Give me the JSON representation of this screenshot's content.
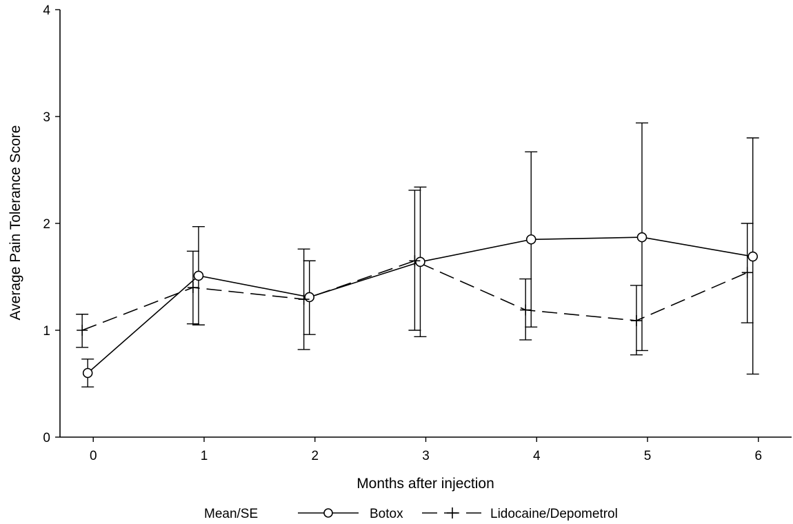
{
  "chart_data": {
    "type": "line",
    "xlabel": "Months after injection",
    "ylabel": "Average Pain Tolerance Score",
    "xlim": [
      -0.3,
      6.3
    ],
    "ylim": [
      0,
      4
    ],
    "x_ticks": [
      "0",
      "1",
      "2",
      "3",
      "4",
      "5",
      "6"
    ],
    "y_ticks": [
      "0",
      "1",
      "2",
      "3",
      "4"
    ],
    "grid": false,
    "legend": {
      "position": "bottom",
      "title": "Mean/SE",
      "entries": [
        "Botox",
        "Lidocaine/Depometrol"
      ]
    },
    "series": [
      {
        "name": "Botox",
        "marker": "circle",
        "line_style": "solid",
        "x": [
          -0.05,
          0.95,
          1.95,
          2.95,
          3.95,
          4.95,
          5.95
        ],
        "y": [
          0.6,
          1.51,
          1.31,
          1.64,
          1.85,
          1.87,
          1.69
        ],
        "err_low": [
          0.47,
          1.05,
          0.96,
          0.94,
          1.03,
          0.81,
          0.59
        ],
        "err_high": [
          0.73,
          1.97,
          1.65,
          2.34,
          2.67,
          2.94,
          2.8
        ]
      },
      {
        "name": "Lidocaine/Depometrol",
        "marker": "plus",
        "line_style": "dashed",
        "x": [
          -0.1,
          0.9,
          1.9,
          2.9,
          3.9,
          4.9,
          5.9
        ],
        "y": [
          1.0,
          1.4,
          1.29,
          1.65,
          1.19,
          1.09,
          1.54
        ],
        "err_low": [
          0.84,
          1.06,
          0.82,
          1.0,
          0.91,
          0.77,
          1.07
        ],
        "err_high": [
          1.15,
          1.74,
          1.76,
          2.31,
          1.48,
          1.42,
          2.0
        ]
      }
    ]
  }
}
